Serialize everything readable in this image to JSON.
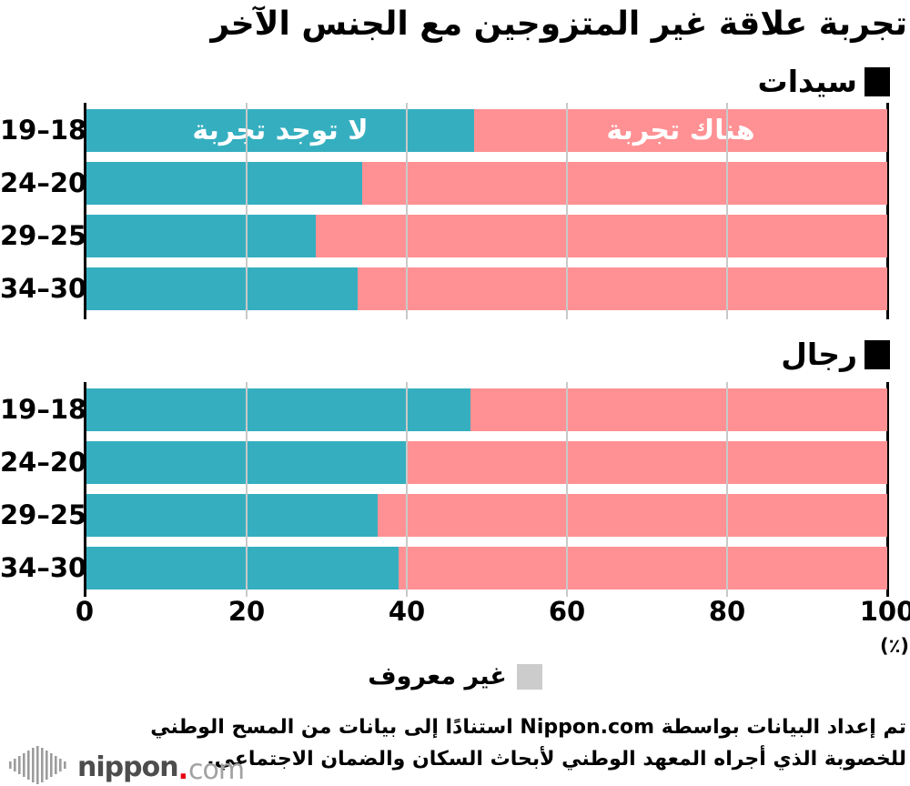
{
  "title": "تجربة علاقة غير المتزوجين مع الجنس الآخر",
  "sections": [
    {
      "id": "women",
      "label": "سيدات"
    },
    {
      "id": "men",
      "label": "رجال"
    }
  ],
  "chart_data": {
    "type": "bar",
    "stacked": true,
    "orientation": "horizontal",
    "xlim": [
      0,
      100
    ],
    "unit_label": "(٪)",
    "axis_ticks": [
      0,
      20,
      40,
      60,
      80,
      100
    ],
    "grid": true,
    "colors": {
      "no_experience": "#35afc0",
      "has_experience": "#ff9194",
      "unknown": "#cccccc"
    },
    "series_names": {
      "no_experience": "لا توجد تجربة",
      "has_experience": "هناك تجربة"
    },
    "groups": [
      {
        "label": "سيدات",
        "categories": [
          "18–19",
          "20–24",
          "25–29",
          "30–34"
        ],
        "categories_display": [
          "19–18",
          "24–20",
          "29–25",
          "34–30"
        ],
        "series": [
          {
            "name": "لا توجد تجربة",
            "values": [
              48.4,
              34.4,
              28.6,
              33.9
            ]
          },
          {
            "name": "هناك تجربة",
            "values": [
              51.6,
              65.6,
              71.4,
              66.1
            ]
          }
        ],
        "in_bar_labels_row": 0
      },
      {
        "label": "رجال",
        "categories": [
          "18–19",
          "20–24",
          "25–29",
          "30–34"
        ],
        "categories_display": [
          "19–18",
          "24–20",
          "29–25",
          "34–30"
        ],
        "series": [
          {
            "name": "لا توجد تجربة",
            "values": [
              48.0,
              40.1,
              36.4,
              39.0
            ]
          },
          {
            "name": "هناك تجربة",
            "values": [
              52.0,
              59.9,
              63.6,
              61.0
            ]
          }
        ],
        "in_bar_labels_row": null
      }
    ],
    "legend": [
      {
        "label": "غير معروف",
        "color": "#cccccc"
      }
    ]
  },
  "axis": {
    "unit_label": "(٪)"
  },
  "legend": {
    "unknown_label": "غير معروف"
  },
  "footer": {
    "line1": "تم إعداد البيانات بواسطة Nippon.com استنادًا إلى بيانات من المسح الوطني",
    "line2": "للخصوبة الذي أجراه المعهد الوطني لأبحاث السكان والضمان الاجتماعي."
  },
  "logo": {
    "brand": "nippon",
    "dot": ".",
    "tld": "com"
  }
}
